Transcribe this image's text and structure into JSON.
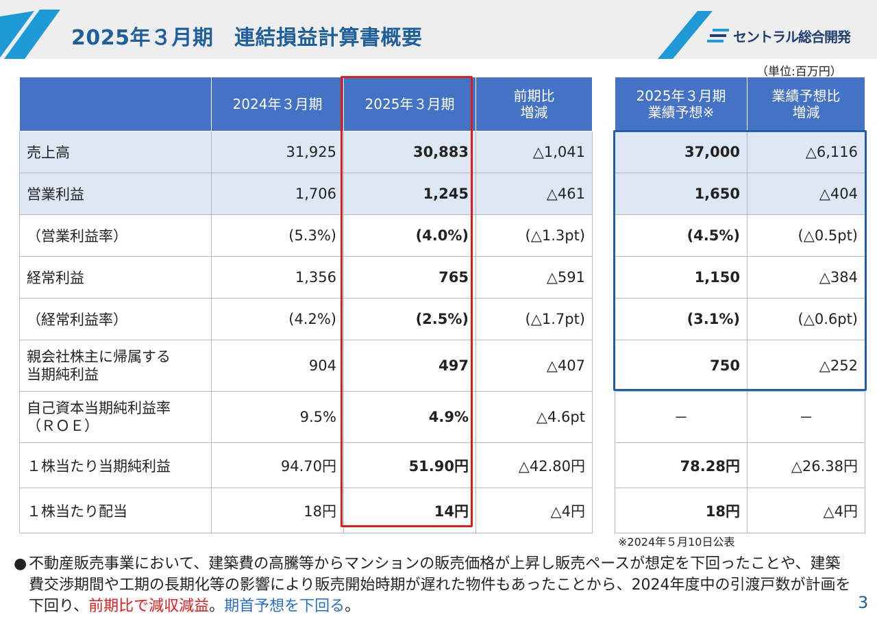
{
  "header": {
    "title": "2025年３月期　連結損益計算書概要",
    "logo_text": "セントラル総合開発",
    "accent_color": "#1e9ad6",
    "title_color": "#1f5f9b"
  },
  "unit_note": "（単位:百万円）",
  "main_table": {
    "columns": [
      "",
      "2024年３月期",
      "2025年３月期",
      "前期比\n増減"
    ],
    "rows": [
      {
        "label": "売上高",
        "prev": "31,925",
        "curr": "30,883",
        "diff": "△1,041"
      },
      {
        "label": "営業利益",
        "prev": "1,706",
        "curr": "1,245",
        "diff": "△461"
      },
      {
        "label": "（営業利益率）",
        "prev": "(5.3%)",
        "curr": "(4.0%)",
        "diff": "(△1.3pt)"
      },
      {
        "label": "経常利益",
        "prev": "1,356",
        "curr": "765",
        "diff": "△591"
      },
      {
        "label": "（経常利益率）",
        "prev": "(4.2%)",
        "curr": "(2.5%)",
        "diff": "(△1.7pt)"
      },
      {
        "label": "親会社株主に帰属する",
        "label2": "当期純利益",
        "prev": "904",
        "curr": "497",
        "diff": "△407"
      },
      {
        "label": "自己資本当期純利益率",
        "label2": "（ＲＯＥ）",
        "prev": "9.5%",
        "curr": "4.9%",
        "diff": "△4.6pt"
      },
      {
        "label": "１株当たり当期純利益",
        "prev": "94.70円",
        "curr": "51.90円",
        "diff": "△42.80円"
      },
      {
        "label": "１株当たり配当",
        "prev": "18円",
        "curr": "14円",
        "diff": "△4円"
      }
    ]
  },
  "forecast_table": {
    "col1_line1": "2025年３月期",
    "col1_line2": "業績予想※",
    "col2_line1": "業績予想比",
    "col2_line2": "増減",
    "main_col2_line1": "前期比",
    "main_col2_line2": "増減",
    "rows": [
      {
        "forecast": "37,000",
        "diff": "△6,116"
      },
      {
        "forecast": "1,650",
        "diff": "△404"
      },
      {
        "forecast": "(4.5%)",
        "diff": "(△0.5pt)"
      },
      {
        "forecast": "1,150",
        "diff": "△384"
      },
      {
        "forecast": "(3.1%)",
        "diff": "(△0.6pt)"
      },
      {
        "forecast": "750",
        "diff": "△252"
      },
      {
        "forecast": "－",
        "diff": "－"
      },
      {
        "forecast": "78.28円",
        "diff": "△26.38円"
      },
      {
        "forecast": "18円",
        "diff": "△4円"
      }
    ]
  },
  "footnote": "※2024年５月10日公表",
  "bullet": {
    "text_a": "不動産販売事業において、建築費の高騰等からマンションの販売価格が上昇し販売ペースが想定を下回ったことや、建築費交渉期間や工期の長期化等の影響により販売開始時期が遅れた物件もあったことから、2024年度中の引渡戸数が計画を下回り、",
    "text_red": "前期比で減収減益",
    "text_sep": "。",
    "text_blue": "期首予想を下回る",
    "text_end": "。"
  },
  "page_number": "3"
}
